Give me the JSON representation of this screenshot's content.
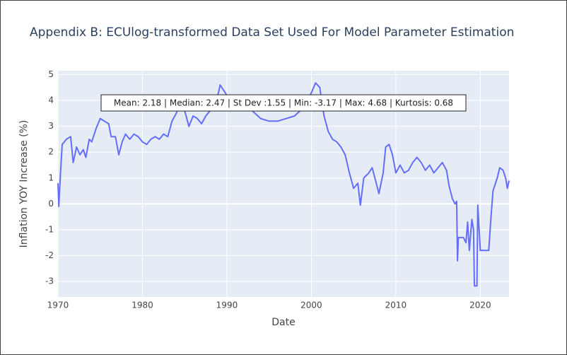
{
  "chart_data": {
    "type": "line",
    "title": "Appendix B: ECUlog-transformed Data Set Used For Model Parameter Estimation",
    "x_label": "Date",
    "y_label": "Inflation YOY Increase (%)",
    "annotation": "Mean: 2.18 | Median: 2.47 | St Dev :1.55 | Min: -3.17 | Max: 4.68 | Kurtosis: 0.68",
    "xlim": [
      1970,
      2023.4
    ],
    "xticks": [
      1970,
      1980,
      1990,
      2000,
      2010,
      2020
    ],
    "ylim": [
      -3.6,
      5.15
    ],
    "yticks": [
      -3,
      -2,
      -1,
      0,
      1,
      2,
      3,
      4,
      5
    ],
    "grid": true,
    "series": [
      {
        "color": "#636efa",
        "x": [
          1970.0,
          1970.1,
          1970.3,
          1970.5,
          1971,
          1971.5,
          1971.8,
          1972.2,
          1972.6,
          1973,
          1973.3,
          1973.7,
          1974,
          1974.5,
          1975,
          1975.5,
          1976,
          1976.3,
          1976.8,
          1977.2,
          1977.6,
          1978,
          1978.5,
          1979,
          1979.5,
          1980,
          1980.5,
          1981,
          1981.5,
          1982,
          1982.5,
          1983,
          1983.5,
          1984,
          1984.5,
          1985,
          1985.5,
          1986,
          1986.5,
          1987,
          1987.5,
          1988,
          1988.5,
          1989,
          1989.2,
          1989.6,
          1990,
          1991,
          1992,
          1993,
          1994,
          1995,
          1996,
          1997,
          1998,
          1999,
          2000,
          2000.5,
          2001,
          2001.5,
          2002,
          2002.5,
          2003,
          2003.5,
          2004,
          2004.5,
          2005,
          2005.5,
          2005.8,
          2006.2,
          2006.8,
          2007.2,
          2007.6,
          2008,
          2008.5,
          2008.8,
          2009.2,
          2009.6,
          2010,
          2010.5,
          2011,
          2011.5,
          2012,
          2012.5,
          2013,
          2013.5,
          2014,
          2014.5,
          2015,
          2015.5,
          2016,
          2016.3,
          2016.7,
          2017,
          2017.2,
          2017.3,
          2017.4,
          2018,
          2018.3,
          2018.5,
          2018.7,
          2019,
          2019.2,
          2019.3,
          2019.6,
          2019.7,
          2020,
          2021,
          2021.2,
          2021.5,
          2022,
          2022.3,
          2022.7,
          2023,
          2023.2,
          2023.4
        ],
        "values": [
          0.8,
          -0.1,
          1.2,
          2.3,
          2.5,
          2.6,
          1.6,
          2.2,
          1.9,
          2.1,
          1.8,
          2.5,
          2.4,
          2.9,
          3.3,
          3.2,
          3.1,
          2.6,
          2.6,
          1.9,
          2.4,
          2.7,
          2.5,
          2.7,
          2.6,
          2.4,
          2.3,
          2.5,
          2.6,
          2.5,
          2.7,
          2.6,
          3.2,
          3.5,
          3.9,
          3.6,
          3.0,
          3.4,
          3.3,
          3.1,
          3.4,
          3.6,
          3.8,
          4.3,
          4.6,
          4.4,
          4.2,
          4.0,
          3.8,
          3.6,
          3.3,
          3.2,
          3.2,
          3.3,
          3.4,
          3.7,
          4.3,
          4.68,
          4.5,
          3.4,
          2.8,
          2.5,
          2.4,
          2.2,
          1.9,
          1.2,
          0.6,
          0.8,
          -0.05,
          1.0,
          1.2,
          1.4,
          0.9,
          0.4,
          1.2,
          2.2,
          2.3,
          1.9,
          1.2,
          1.5,
          1.2,
          1.3,
          1.6,
          1.8,
          1.6,
          1.3,
          1.5,
          1.2,
          1.4,
          1.6,
          1.3,
          0.7,
          0.2,
          0.0,
          0.1,
          -2.2,
          -1.3,
          -1.3,
          -1.5,
          -0.7,
          -1.8,
          -0.6,
          -1.0,
          -3.17,
          -3.17,
          -0.05,
          -1.8,
          -1.8,
          -0.8,
          0.5,
          1.0,
          1.4,
          1.3,
          1.0,
          0.6,
          0.9
        ]
      }
    ]
  }
}
